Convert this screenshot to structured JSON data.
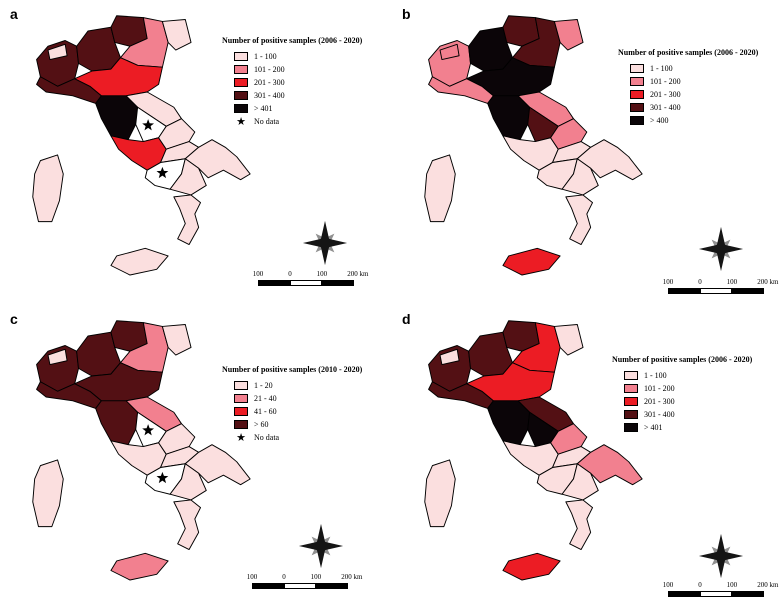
{
  "colors": {
    "c1": "#fbdfdf",
    "c2": "#f2808f",
    "c3": "#ec1c24",
    "c4": "#531014",
    "c5": "#0b0508",
    "nd": "#ffffff",
    "stroke": "#000000",
    "no_data_star": "#000000",
    "compass_main": "#151515",
    "compass_shadow": "#909090"
  },
  "panels": [
    {
      "letter": "a",
      "legend": {
        "title": "Number of positive samples (2006 - 2020)",
        "items": [
          {
            "label": "1 - 100",
            "class": "c1"
          },
          {
            "label": "101 - 200",
            "class": "c2"
          },
          {
            "label": "201 - 300",
            "class": "c3"
          },
          {
            "label": "301 - 400",
            "class": "c4"
          },
          {
            "label": "> 401",
            "class": "c5"
          },
          {
            "label": "No data",
            "symbol": "star"
          }
        ]
      },
      "scalebar_labels": [
        "100",
        "0",
        "100",
        "200 km"
      ],
      "regions": {
        "piemonte": "c4",
        "valle-daosta": "c1",
        "lombardia": "c4",
        "trentino-alto-adige": "c4",
        "veneto": "c2",
        "friuli-venezia-giulia": "c1",
        "liguria": "c4",
        "emilia-romagna": "c3",
        "toscana": "c5",
        "marche": "c1",
        "umbria": "nd",
        "lazio": "c3",
        "abruzzo": "c1",
        "molise": "c1",
        "campania": "nd",
        "puglia": "c1",
        "basilicata": "c1",
        "calabria": "c1",
        "sicilia": "c1",
        "sardegna": "c1"
      }
    },
    {
      "letter": "b",
      "legend": {
        "title": "Number of positive samples (2006 - 2020)",
        "items": [
          {
            "label": "1 - 100",
            "class": "c1"
          },
          {
            "label": "101 - 200",
            "class": "c2"
          },
          {
            "label": "201 - 300",
            "class": "c3"
          },
          {
            "label": "301 - 400",
            "class": "c4"
          },
          {
            "label": "> 400",
            "class": "c5"
          }
        ]
      },
      "scalebar_labels": [
        "100",
        "0",
        "100",
        "200 km"
      ],
      "regions": {
        "piemonte": "c2",
        "valle-daosta": "c2",
        "lombardia": "c5",
        "trentino-alto-adige": "c4",
        "veneto": "c4",
        "friuli-venezia-giulia": "c2",
        "liguria": "c2",
        "emilia-romagna": "c5",
        "toscana": "c5",
        "marche": "c2",
        "umbria": "c4",
        "lazio": "c1",
        "abruzzo": "c2",
        "molise": "c1",
        "campania": "c1",
        "puglia": "c1",
        "basilicata": "c1",
        "calabria": "c1",
        "sicilia": "c3",
        "sardegna": "c1"
      }
    },
    {
      "letter": "c",
      "legend": {
        "title": "Number of positive samples (2010 - 2020)",
        "items": [
          {
            "label": "1 - 20",
            "class": "c1"
          },
          {
            "label": "21 - 40",
            "class": "c2"
          },
          {
            "label": "41 - 60",
            "class": "c3"
          },
          {
            "label": "> 60",
            "class": "c4"
          },
          {
            "label": "No data",
            "symbol": "star"
          }
        ]
      },
      "scalebar_labels": [
        "100",
        "0",
        "100",
        "200 km"
      ],
      "regions": {
        "piemonte": "c4",
        "valle-daosta": "c1",
        "lombardia": "c4",
        "trentino-alto-adige": "c4",
        "veneto": "c2",
        "friuli-venezia-giulia": "c1",
        "liguria": "c4",
        "emilia-romagna": "c4",
        "toscana": "c4",
        "marche": "c2",
        "umbria": "nd",
        "lazio": "c1",
        "abruzzo": "c1",
        "molise": "c1",
        "campania": "nd",
        "puglia": "c1",
        "basilicata": "c1",
        "calabria": "c1",
        "sicilia": "c2",
        "sardegna": "c1"
      }
    },
    {
      "letter": "d",
      "legend": {
        "title": "Number of positive samples (2006 - 2020)",
        "items": [
          {
            "label": "1 - 100",
            "class": "c1"
          },
          {
            "label": "101 - 200",
            "class": "c2"
          },
          {
            "label": "201 - 300",
            "class": "c3"
          },
          {
            "label": "301 - 400",
            "class": "c4"
          },
          {
            "label": "> 401",
            "class": "c5"
          }
        ]
      },
      "scalebar_labels": [
        "100",
        "0",
        "100",
        "200 km"
      ],
      "regions": {
        "piemonte": "c4",
        "valle-daosta": "c1",
        "lombardia": "c4",
        "trentino-alto-adige": "c4",
        "veneto": "c3",
        "friuli-venezia-giulia": "c1",
        "liguria": "c4",
        "emilia-romagna": "c3",
        "toscana": "c5",
        "marche": "c4",
        "umbria": "c5",
        "lazio": "c1",
        "abruzzo": "c2",
        "molise": "c1",
        "campania": "c1",
        "puglia": "c2",
        "basilicata": "c1",
        "calabria": "c1",
        "sicilia": "c3",
        "sardegna": "c1"
      }
    }
  ]
}
